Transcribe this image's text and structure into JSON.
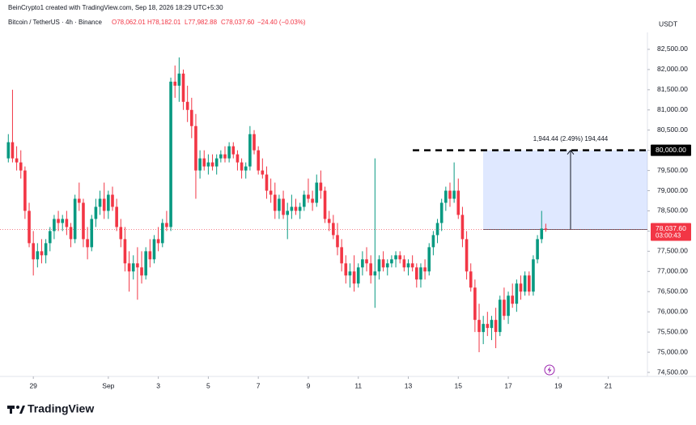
{
  "header": {
    "credit": "BeinCrypto1 created with TradingView.com, Sep 18, 2026 18:29 UTC+5:30",
    "symbol": "Bitcoin / TetherUS · 4h · Binance",
    "open": "O78,062.01",
    "high": "H78,182.01",
    "low": "L77,982.88",
    "close": "C78,037.60",
    "change": "−24.40 (−0.03%)",
    "currency": "USDT",
    "brand": "TradingView"
  },
  "chart_data": {
    "type": "candlestick",
    "up_color": "#089981",
    "down_color": "#f23645",
    "ohlc": [
      [
        79800,
        80400,
        79700,
        80200
      ],
      [
        80200,
        81500,
        79700,
        79800
      ],
      [
        79800,
        80100,
        79500,
        79700
      ],
      [
        79700,
        80000,
        79300,
        79500
      ],
      [
        79500,
        79600,
        78300,
        78500
      ],
      [
        78500,
        78700,
        77600,
        77700
      ],
      [
        77700,
        78000,
        76900,
        77300
      ],
      [
        77300,
        77700,
        77100,
        77500
      ],
      [
        77500,
        77800,
        77200,
        77400
      ],
      [
        77400,
        77800,
        77200,
        77700
      ],
      [
        77700,
        78100,
        77500,
        78000
      ],
      [
        78000,
        78400,
        77800,
        78300
      ],
      [
        78300,
        78500,
        78000,
        78200
      ],
      [
        78200,
        78400,
        78000,
        78300
      ],
      [
        78300,
        78500,
        77900,
        78100
      ],
      [
        78100,
        78200,
        77600,
        77800
      ],
      [
        77800,
        78900,
        77700,
        78800
      ],
      [
        78800,
        79200,
        78500,
        78700
      ],
      [
        78700,
        78800,
        77600,
        77800
      ],
      [
        77800,
        78100,
        77300,
        77600
      ],
      [
        77600,
        78400,
        77500,
        78300
      ],
      [
        78300,
        78800,
        78100,
        78600
      ],
      [
        78600,
        79000,
        78400,
        78800
      ],
      [
        78800,
        79200,
        78300,
        78500
      ],
      [
        78500,
        79000,
        78300,
        78900
      ],
      [
        78900,
        79100,
        78500,
        78600
      ],
      [
        78600,
        78800,
        78000,
        78100
      ],
      [
        78100,
        78300,
        77600,
        77800
      ],
      [
        77800,
        78100,
        77000,
        77200
      ],
      [
        77200,
        77500,
        76500,
        77000
      ],
      [
        77000,
        77400,
        76800,
        77200
      ],
      [
        77200,
        77600,
        76300,
        77100
      ],
      [
        77100,
        77500,
        76700,
        76900
      ],
      [
        76900,
        77600,
        76800,
        77500
      ],
      [
        77500,
        77800,
        77100,
        77300
      ],
      [
        77300,
        77900,
        77200,
        77800
      ],
      [
        77800,
        78100,
        77500,
        77700
      ],
      [
        77700,
        78300,
        77600,
        78200
      ],
      [
        78200,
        78500,
        78000,
        78100
      ],
      [
        78100,
        81800,
        78000,
        81700
      ],
      [
        81700,
        82100,
        81300,
        81600
      ],
      [
        81600,
        82300,
        81200,
        81900
      ],
      [
        81900,
        82000,
        81000,
        81200
      ],
      [
        81200,
        81600,
        80700,
        81000
      ],
      [
        81000,
        81300,
        80300,
        80600
      ],
      [
        80600,
        80900,
        78800,
        79500
      ],
      [
        79500,
        80000,
        79300,
        79800
      ],
      [
        79800,
        80000,
        79500,
        79600
      ],
      [
        79600,
        79900,
        79400,
        79700
      ],
      [
        79700,
        79900,
        79500,
        79600
      ],
      [
        79600,
        79900,
        79400,
        79800
      ],
      [
        79800,
        80000,
        79700,
        79900
      ],
      [
        79900,
        80100,
        79700,
        79800
      ],
      [
        79800,
        80200,
        79700,
        80100
      ],
      [
        80100,
        80200,
        79800,
        79900
      ],
      [
        79900,
        80000,
        79500,
        79700
      ],
      [
        79700,
        79800,
        79300,
        79500
      ],
      [
        79500,
        79700,
        79300,
        79600
      ],
      [
        79600,
        80600,
        79500,
        80400
      ],
      [
        80400,
        80500,
        79900,
        80000
      ],
      [
        80000,
        80100,
        79400,
        79500
      ],
      [
        79500,
        79800,
        79300,
        79400
      ],
      [
        79400,
        79600,
        78800,
        79000
      ],
      [
        79000,
        79300,
        78700,
        78900
      ],
      [
        78900,
        79200,
        78300,
        78500
      ],
      [
        78500,
        78900,
        78300,
        78800
      ],
      [
        78800,
        79000,
        78300,
        78400
      ],
      [
        78400,
        78700,
        77800,
        78500
      ],
      [
        78500,
        78900,
        78300,
        78600
      ],
      [
        78600,
        78800,
        78400,
        78500
      ],
      [
        78500,
        78700,
        78300,
        78600
      ],
      [
        78600,
        79000,
        78500,
        78900
      ],
      [
        78900,
        79300,
        78700,
        78800
      ],
      [
        78800,
        79000,
        78500,
        78700
      ],
      [
        78700,
        79400,
        78600,
        79200
      ],
      [
        79200,
        79500,
        78800,
        79000
      ],
      [
        79000,
        79100,
        78200,
        78300
      ],
      [
        78300,
        78500,
        78000,
        78200
      ],
      [
        78200,
        78400,
        77800,
        77900
      ],
      [
        77900,
        78200,
        77400,
        77600
      ],
      [
        77600,
        77800,
        77000,
        77200
      ],
      [
        77200,
        77400,
        76700,
        76900
      ],
      [
        76900,
        77200,
        76600,
        77000
      ],
      [
        77000,
        77400,
        76500,
        76700
      ],
      [
        76700,
        77200,
        76600,
        77100
      ],
      [
        77100,
        77500,
        76900,
        77300
      ],
      [
        77300,
        77600,
        77000,
        77200
      ],
      [
        77200,
        77400,
        76700,
        76900
      ],
      [
        76900,
        79800,
        76100,
        77000
      ],
      [
        77000,
        77400,
        76800,
        77300
      ],
      [
        77300,
        77500,
        77000,
        77100
      ],
      [
        77100,
        77300,
        76900,
        77200
      ],
      [
        77200,
        77400,
        77100,
        77300
      ],
      [
        77300,
        77500,
        77100,
        77400
      ],
      [
        77400,
        77500,
        77200,
        77300
      ],
      [
        77300,
        77400,
        77000,
        77100
      ],
      [
        77100,
        77300,
        76900,
        77200
      ],
      [
        77200,
        77400,
        77000,
        77100
      ],
      [
        77100,
        77200,
        76600,
        76800
      ],
      [
        76800,
        77200,
        76600,
        77100
      ],
      [
        77100,
        77300,
        76800,
        77000
      ],
      [
        77000,
        77700,
        76900,
        77600
      ],
      [
        77600,
        78000,
        77400,
        77900
      ],
      [
        77900,
        78300,
        77700,
        78200
      ],
      [
        78200,
        78800,
        78000,
        78700
      ],
      [
        78700,
        79100,
        78500,
        79000
      ],
      [
        79000,
        79200,
        78600,
        78800
      ],
      [
        78800,
        79700,
        78700,
        79000
      ],
      [
        79000,
        79300,
        78300,
        78400
      ],
      [
        78400,
        78600,
        77600,
        77800
      ],
      [
        77800,
        78000,
        76800,
        77000
      ],
      [
        77000,
        77200,
        76500,
        76600
      ],
      [
        76600,
        76800,
        75500,
        75800
      ],
      [
        75800,
        76200,
        75000,
        75500
      ],
      [
        75500,
        75900,
        75200,
        75700
      ],
      [
        75700,
        76000,
        75400,
        75600
      ],
      [
        75600,
        75900,
        75300,
        75800
      ],
      [
        75800,
        76100,
        75100,
        75500
      ],
      [
        75500,
        76400,
        75400,
        76300
      ],
      [
        76300,
        76600,
        75800,
        75900
      ],
      [
        75900,
        76500,
        75700,
        76400
      ],
      [
        76400,
        76700,
        76100,
        76200
      ],
      [
        76200,
        76800,
        76000,
        76700
      ],
      [
        76700,
        76900,
        76300,
        76500
      ],
      [
        76500,
        77000,
        76400,
        76900
      ],
      [
        76900,
        77000,
        76400,
        76500
      ],
      [
        76500,
        77400,
        76400,
        77300
      ],
      [
        77300,
        77900,
        77200,
        77800
      ],
      [
        77800,
        78500,
        77700,
        78062.01
      ],
      [
        78062.01,
        78182.01,
        77982.88,
        78037.6
      ]
    ],
    "last_price_label": "78,037.60",
    "countdown": "03:00:43",
    "target": {
      "value": 80000,
      "label": "80,000.00"
    },
    "measure_label": "1,944.44 (2.49%) 194,444",
    "xlim": [
      -2,
      153.4
    ],
    "xticks": [
      {
        "value": 6,
        "label": "29"
      },
      {
        "value": 24,
        "label": "Sep"
      },
      {
        "value": 36,
        "label": "3"
      },
      {
        "value": 48,
        "label": "5"
      },
      {
        "value": 60,
        "label": "7"
      },
      {
        "value": 72,
        "label": "9"
      },
      {
        "value": 84,
        "label": "11"
      },
      {
        "value": 96,
        "label": "13"
      },
      {
        "value": 108,
        "label": "15"
      },
      {
        "value": 120,
        "label": "17"
      },
      {
        "value": 132,
        "label": "19"
      },
      {
        "value": 144,
        "label": "21"
      }
    ],
    "ylim": [
      74400,
      82920
    ],
    "yticks": [
      {
        "value": 74500,
        "label": "74,500.00"
      },
      {
        "value": 75000,
        "label": "75,000.00"
      },
      {
        "value": 75500,
        "label": "75,500.00"
      },
      {
        "value": 76000,
        "label": "76,000.00"
      },
      {
        "value": 76500,
        "label": "76,500.00"
      },
      {
        "value": 77000,
        "label": "77,000.00"
      },
      {
        "value": 77500,
        "label": "77,500.00"
      },
      {
        "value": 78000,
        "label": "78,000.00"
      },
      {
        "value": 78500,
        "label": "78,500.00"
      },
      {
        "value": 79000,
        "label": "79,000.00"
      },
      {
        "value": 79500,
        "label": "79,500.00"
      },
      {
        "value": 80000,
        "label": "80,000.00"
      },
      {
        "value": 80500,
        "label": "80,500.00"
      },
      {
        "value": 81000,
        "label": "81,000.00"
      },
      {
        "value": 81500,
        "label": "81,500.00"
      },
      {
        "value": 82000,
        "label": "82,000.00"
      },
      {
        "value": 82500,
        "label": "82,500.00"
      }
    ],
    "grid": false
  }
}
